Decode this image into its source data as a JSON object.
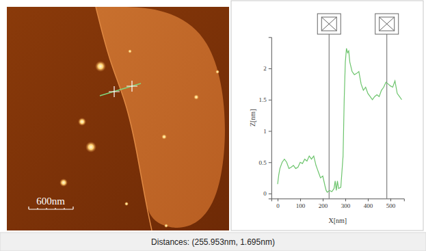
{
  "chart_data": {
    "type": "line",
    "xlabel": "X[nm]",
    "ylabel": "Z[nm]",
    "x": [
      0,
      5,
      10,
      20,
      30,
      40,
      50,
      60,
      70,
      80,
      90,
      100,
      110,
      120,
      130,
      140,
      150,
      160,
      170,
      175,
      180,
      185,
      190,
      200,
      210,
      215,
      220,
      230,
      240,
      250,
      255,
      260,
      265,
      270,
      280,
      290,
      295,
      300,
      305,
      310,
      315,
      320,
      330,
      340,
      350,
      360,
      370,
      380,
      390,
      400,
      410,
      420,
      430,
      440,
      450,
      460,
      470,
      480,
      490,
      500,
      510,
      520,
      530,
      540,
      550
    ],
    "values": [
      0.15,
      0.3,
      0.4,
      0.5,
      0.55,
      0.5,
      0.4,
      0.42,
      0.45,
      0.4,
      0.42,
      0.5,
      0.48,
      0.55,
      0.52,
      0.6,
      0.55,
      0.6,
      0.45,
      0.4,
      0.35,
      0.3,
      0.25,
      0.28,
      0.12,
      0.05,
      0.02,
      0.05,
      0.03,
      0.08,
      0.2,
      0.05,
      0.2,
      0.08,
      0.1,
      0.6,
      1.5,
      2.1,
      2.32,
      2.25,
      2.28,
      2.1,
      1.95,
      1.9,
      1.92,
      1.95,
      1.75,
      1.65,
      1.7,
      1.6,
      1.55,
      1.5,
      1.55,
      1.58,
      1.55,
      1.65,
      1.7,
      1.78,
      1.75,
      1.72,
      1.7,
      1.8,
      1.6,
      1.55,
      1.5
    ],
    "color": "#6cc46c",
    "xlim": [
      -28,
      560
    ],
    "ylim": [
      -0.08,
      2.5
    ],
    "xticks": [
      0,
      100,
      200,
      300,
      400,
      500
    ],
    "yticks": [
      0,
      0.5,
      1,
      1.5,
      2
    ],
    "cursors": [
      228,
      484
    ]
  },
  "image": {
    "scale_bar": "600nm"
  },
  "footer": {
    "text": "Distances: (255.953nm, 1.695nm)"
  }
}
